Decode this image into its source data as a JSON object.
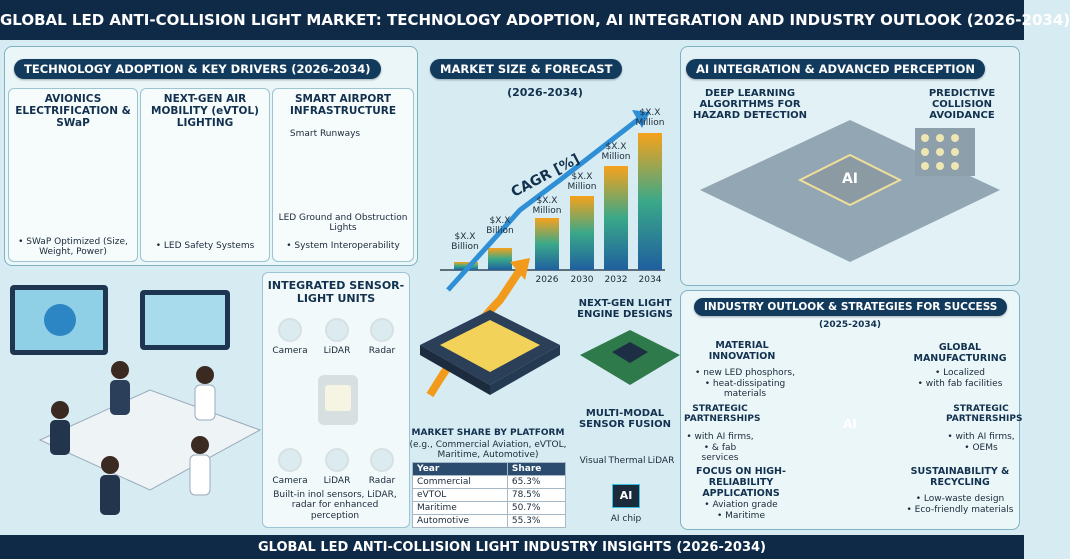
{
  "header": {
    "title": "GLOBAL LED ANTI-COLLISION LIGHT MARKET: TECHNOLOGY ADOPTION, AI INTEGRATION AND INDUSTRY OUTLOOK (2026-2034)"
  },
  "tech": {
    "title": "TECHNOLOGY ADOPTION & KEY DRIVERS (2026-2034)",
    "cards": [
      {
        "title": "AVIONICS ELECTRIFICATION & SWaP",
        "items": [
          "• SWaP Optimized (Size, Weight, Power)"
        ]
      },
      {
        "title": "NEXT-GEN AIR MOBILITY (eVTOL) LIGHTING",
        "items": [
          "• LED Safety Systems"
        ]
      },
      {
        "title": "SMART AIRPORT INFRASTRUCTURE",
        "items": [
          "Smart Runways",
          "LED Ground and Obstruction Lights",
          "• System Interoperability"
        ]
      }
    ]
  },
  "sensor": {
    "title": "INTEGRATED SENSOR-LIGHT UNITS",
    "top": [
      "Camera",
      "LiDAR",
      "Radar"
    ],
    "bottom": [
      "Camera",
      "LiDAR",
      "Radar"
    ],
    "caption": "Built-in inol sensors, LiDAR, radar for enhanced perception"
  },
  "market": {
    "title": "MARKET SIZE & FORECAST",
    "subtitle": "(2026-2034)",
    "cagr": "CAGR [%]",
    "bar_labels": [
      "$X.X Billion",
      "$X.X Billion",
      "$X.X Million",
      "$X.X Million",
      "$X.X Million",
      "$X.X Million"
    ],
    "years": [
      "2026",
      "2030",
      "2032",
      "2034"
    ]
  },
  "engine": {
    "title": "NEXT-GEN LIGHT ENGINE DESIGNS"
  },
  "share": {
    "title": "MARKET SHARE BY PLATFORM",
    "subtitle": "(e.g., Commercial Aviation, eVTOL, Maritime, Automotive)",
    "header": [
      "Year",
      "Share"
    ],
    "rows": [
      [
        "Commercial",
        "65.3%"
      ],
      [
        "eVTOL",
        "78.5%"
      ],
      [
        "Maritime",
        "50.7%"
      ],
      [
        "Automotive",
        "55.3%"
      ]
    ]
  },
  "fusion": {
    "title": "MULTI-MODAL SENSOR FUSION",
    "sensors": [
      "Visual",
      "Thermal",
      "LiDAR"
    ],
    "chip": "AI",
    "caption": "AI chip"
  },
  "ai": {
    "title": "AI INTEGRATION & ADVANCED PERCEPTION",
    "left": "DEEP LEARNING ALGORITHMS FOR HAZARD DETECTION",
    "right": "PREDICTIVE COLLISION AVOIDANCE",
    "chip": "AI"
  },
  "outlook": {
    "title": "INDUSTRY OUTLOOK & STRATEGIES FOR SUCCESS",
    "subtitle": "(2025-2034)",
    "hub": "AI",
    "items": [
      {
        "title": "MATERIAL INNOVATION",
        "lines": [
          "• new LED phosphors,",
          "• heat-dissipating materials"
        ]
      },
      {
        "title": "GLOBAL MANUFACTURING",
        "lines": [
          "• Localized",
          "• with fab facilities"
        ]
      },
      {
        "title": "STRATEGIC PARTNERSHIPS",
        "lines": [
          "• with AI firms,",
          "• & fab services"
        ]
      },
      {
        "title": "STRATEGIC PARTNERSHIPS",
        "lines": [
          "• with AI firms,",
          "• OEMs"
        ]
      },
      {
        "title": "FOCUS ON HIGH-RELIABILITY APPLICATIONS",
        "lines": [
          "• Aviation grade",
          "• Maritime"
        ]
      },
      {
        "title": "SUSTAINABILITY & RECYCLING",
        "lines": [
          "• Low-waste design",
          "• Eco-friendly materials"
        ]
      }
    ]
  },
  "footer": {
    "title": "GLOBAL LED ANTI-COLLISION LIGHT INDUSTRY INSIGHTS (2026-2034)"
  }
}
